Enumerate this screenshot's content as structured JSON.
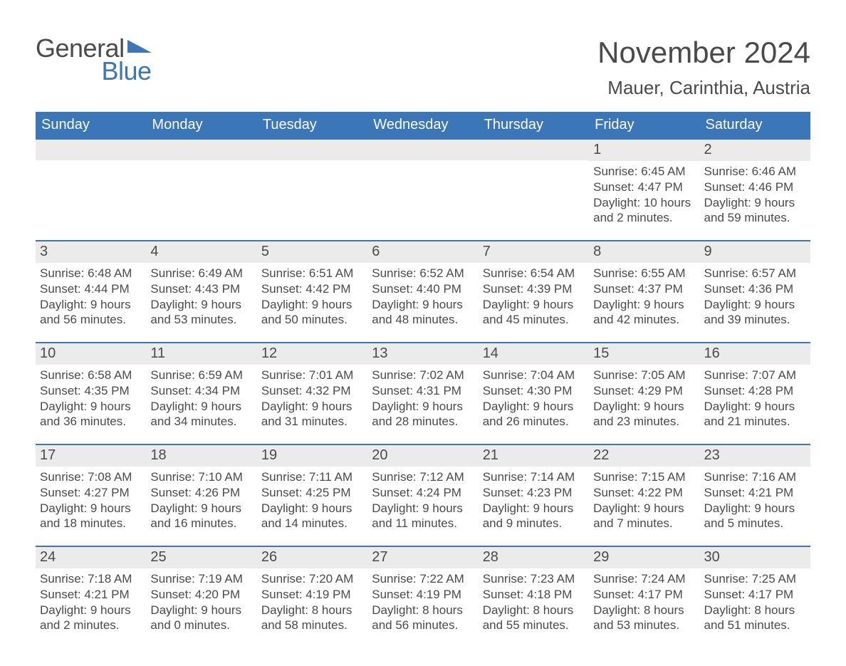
{
  "brand": {
    "part1": "General",
    "part2": "Blue"
  },
  "title": "November 2024",
  "location": "Mauer, Carinthia, Austria",
  "colors": {
    "accent": "#3a76b8",
    "header_text": "#ffffff",
    "body_text": "#4a4a4a",
    "daynum_bg": "#ebebeb",
    "page_bg": "#ffffff"
  },
  "day_names": [
    "Sunday",
    "Monday",
    "Tuesday",
    "Wednesday",
    "Thursday",
    "Friday",
    "Saturday"
  ],
  "weeks": [
    [
      null,
      null,
      null,
      null,
      null,
      {
        "n": "1",
        "sr": "6:45 AM",
        "ss": "4:47 PM",
        "dl": "10 hours and 2 minutes."
      },
      {
        "n": "2",
        "sr": "6:46 AM",
        "ss": "4:46 PM",
        "dl": "9 hours and 59 minutes."
      }
    ],
    [
      {
        "n": "3",
        "sr": "6:48 AM",
        "ss": "4:44 PM",
        "dl": "9 hours and 56 minutes."
      },
      {
        "n": "4",
        "sr": "6:49 AM",
        "ss": "4:43 PM",
        "dl": "9 hours and 53 minutes."
      },
      {
        "n": "5",
        "sr": "6:51 AM",
        "ss": "4:42 PM",
        "dl": "9 hours and 50 minutes."
      },
      {
        "n": "6",
        "sr": "6:52 AM",
        "ss": "4:40 PM",
        "dl": "9 hours and 48 minutes."
      },
      {
        "n": "7",
        "sr": "6:54 AM",
        "ss": "4:39 PM",
        "dl": "9 hours and 45 minutes."
      },
      {
        "n": "8",
        "sr": "6:55 AM",
        "ss": "4:37 PM",
        "dl": "9 hours and 42 minutes."
      },
      {
        "n": "9",
        "sr": "6:57 AM",
        "ss": "4:36 PM",
        "dl": "9 hours and 39 minutes."
      }
    ],
    [
      {
        "n": "10",
        "sr": "6:58 AM",
        "ss": "4:35 PM",
        "dl": "9 hours and 36 minutes."
      },
      {
        "n": "11",
        "sr": "6:59 AM",
        "ss": "4:34 PM",
        "dl": "9 hours and 34 minutes."
      },
      {
        "n": "12",
        "sr": "7:01 AM",
        "ss": "4:32 PM",
        "dl": "9 hours and 31 minutes."
      },
      {
        "n": "13",
        "sr": "7:02 AM",
        "ss": "4:31 PM",
        "dl": "9 hours and 28 minutes."
      },
      {
        "n": "14",
        "sr": "7:04 AM",
        "ss": "4:30 PM",
        "dl": "9 hours and 26 minutes."
      },
      {
        "n": "15",
        "sr": "7:05 AM",
        "ss": "4:29 PM",
        "dl": "9 hours and 23 minutes."
      },
      {
        "n": "16",
        "sr": "7:07 AM",
        "ss": "4:28 PM",
        "dl": "9 hours and 21 minutes."
      }
    ],
    [
      {
        "n": "17",
        "sr": "7:08 AM",
        "ss": "4:27 PM",
        "dl": "9 hours and 18 minutes."
      },
      {
        "n": "18",
        "sr": "7:10 AM",
        "ss": "4:26 PM",
        "dl": "9 hours and 16 minutes."
      },
      {
        "n": "19",
        "sr": "7:11 AM",
        "ss": "4:25 PM",
        "dl": "9 hours and 14 minutes."
      },
      {
        "n": "20",
        "sr": "7:12 AM",
        "ss": "4:24 PM",
        "dl": "9 hours and 11 minutes."
      },
      {
        "n": "21",
        "sr": "7:14 AM",
        "ss": "4:23 PM",
        "dl": "9 hours and 9 minutes."
      },
      {
        "n": "22",
        "sr": "7:15 AM",
        "ss": "4:22 PM",
        "dl": "9 hours and 7 minutes."
      },
      {
        "n": "23",
        "sr": "7:16 AM",
        "ss": "4:21 PM",
        "dl": "9 hours and 5 minutes."
      }
    ],
    [
      {
        "n": "24",
        "sr": "7:18 AM",
        "ss": "4:21 PM",
        "dl": "9 hours and 2 minutes."
      },
      {
        "n": "25",
        "sr": "7:19 AM",
        "ss": "4:20 PM",
        "dl": "9 hours and 0 minutes."
      },
      {
        "n": "26",
        "sr": "7:20 AM",
        "ss": "4:19 PM",
        "dl": "8 hours and 58 minutes."
      },
      {
        "n": "27",
        "sr": "7:22 AM",
        "ss": "4:19 PM",
        "dl": "8 hours and 56 minutes."
      },
      {
        "n": "28",
        "sr": "7:23 AM",
        "ss": "4:18 PM",
        "dl": "8 hours and 55 minutes."
      },
      {
        "n": "29",
        "sr": "7:24 AM",
        "ss": "4:17 PM",
        "dl": "8 hours and 53 minutes."
      },
      {
        "n": "30",
        "sr": "7:25 AM",
        "ss": "4:17 PM",
        "dl": "8 hours and 51 minutes."
      }
    ]
  ],
  "labels": {
    "sunrise": "Sunrise: ",
    "sunset": "Sunset: ",
    "daylight": "Daylight: "
  }
}
